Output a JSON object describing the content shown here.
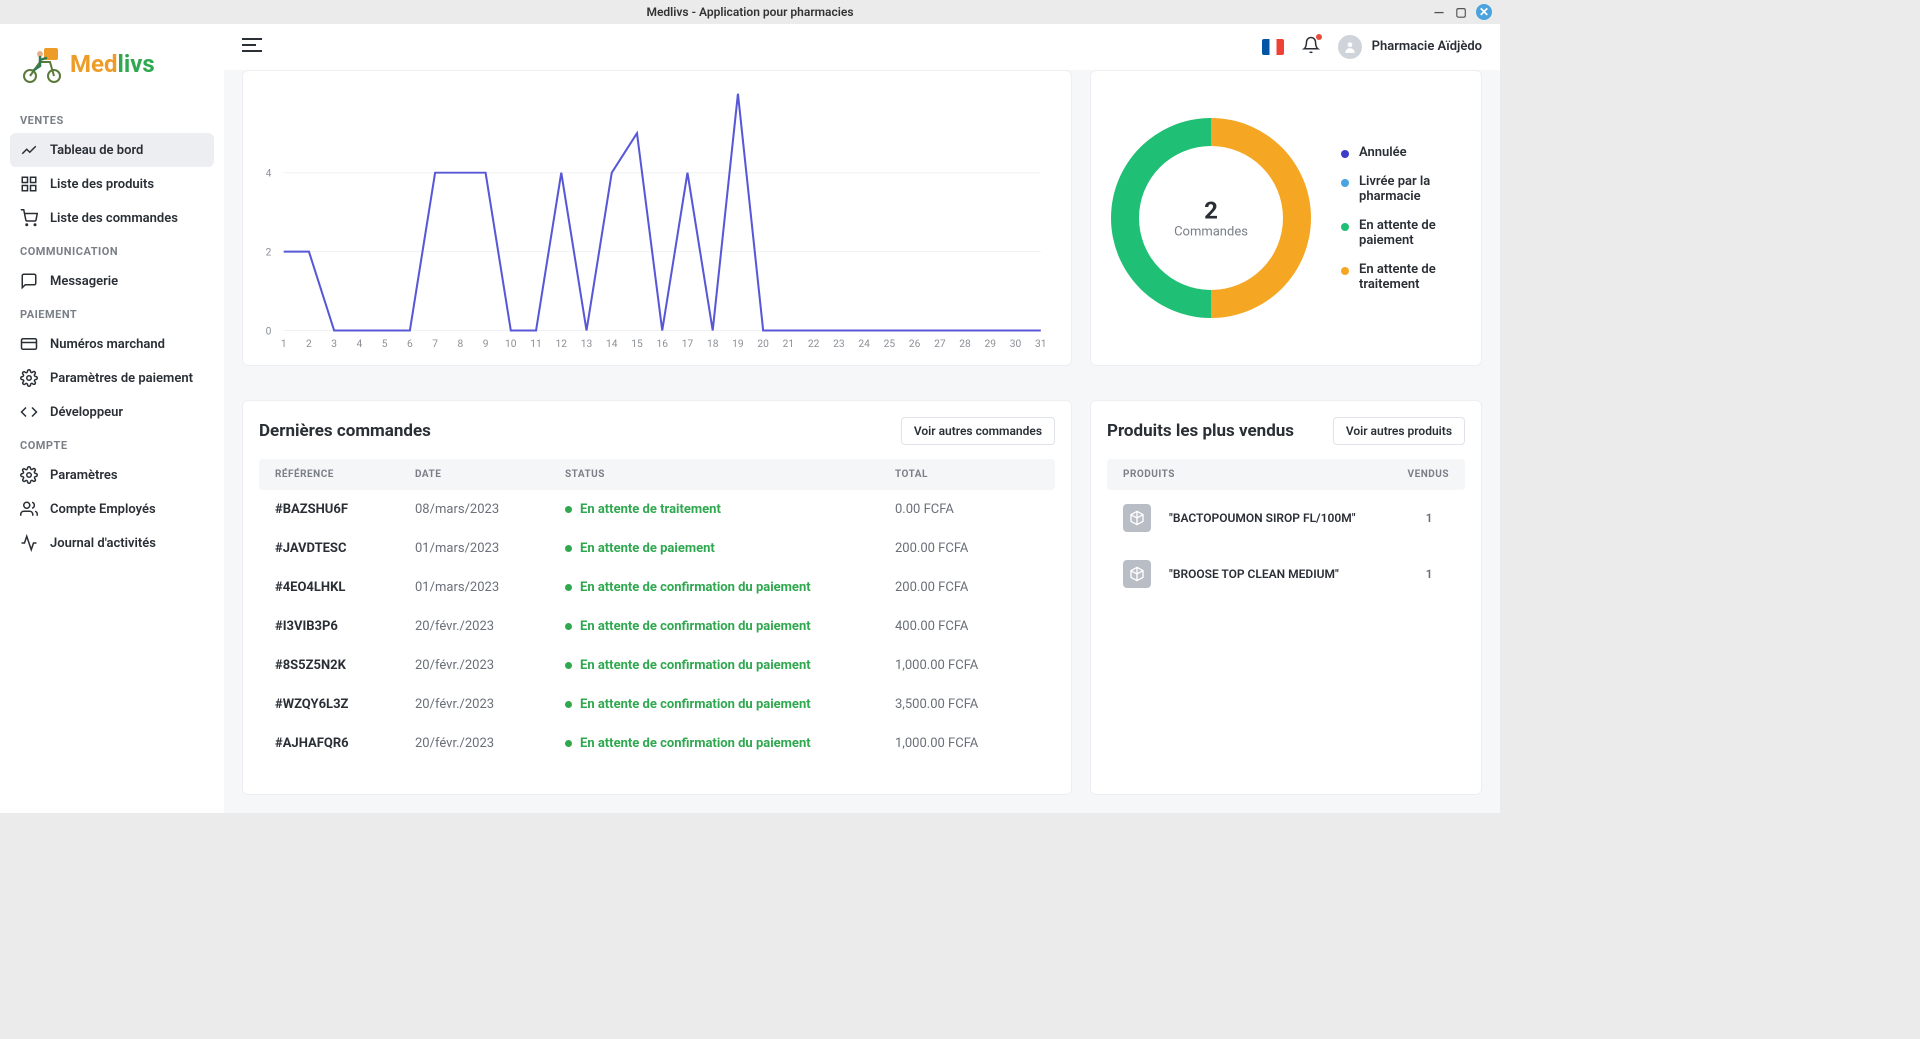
{
  "window": {
    "title": "Medlivs - Application pour pharmacies"
  },
  "logo": {
    "med": "Med",
    "livs": "livs"
  },
  "sidebar": {
    "sections": [
      {
        "label": "VENTES",
        "items": [
          {
            "icon": "trend",
            "label": "Tableau de bord",
            "active": true
          },
          {
            "icon": "grid",
            "label": "Liste des produits",
            "active": false
          },
          {
            "icon": "cart",
            "label": "Liste des commandes",
            "active": false
          }
        ]
      },
      {
        "label": "COMMUNICATION",
        "items": [
          {
            "icon": "chat",
            "label": "Messagerie",
            "active": false
          }
        ]
      },
      {
        "label": "PAIEMENT",
        "items": [
          {
            "icon": "card",
            "label": "Numéros marchand",
            "active": false
          },
          {
            "icon": "gear",
            "label": "Paramètres de paiement",
            "active": false
          },
          {
            "icon": "code",
            "label": "Développeur",
            "active": false
          }
        ]
      },
      {
        "label": "COMPTE",
        "items": [
          {
            "icon": "gear",
            "label": "Paramètres",
            "active": false
          },
          {
            "icon": "people",
            "label": "Compte Employés",
            "active": false
          },
          {
            "icon": "activity",
            "label": "Journal d'activités",
            "active": false
          }
        ]
      }
    ]
  },
  "topbar": {
    "user_name": "Pharmacie Aïdjèdo"
  },
  "chart": {
    "type": "line",
    "x_ticks": [
      1,
      2,
      3,
      4,
      5,
      6,
      7,
      8,
      9,
      10,
      11,
      12,
      13,
      14,
      15,
      16,
      17,
      18,
      19,
      20,
      21,
      22,
      23,
      24,
      25,
      26,
      27,
      28,
      29,
      30,
      31
    ],
    "y_ticks": [
      0,
      2,
      4
    ],
    "ylim": [
      0,
      6.2
    ],
    "line_color": "#5858d6",
    "grid_color": "#f0f1f4",
    "values": [
      2,
      2,
      0,
      0,
      0,
      0,
      4,
      4,
      4,
      0,
      0,
      4,
      0,
      4,
      5,
      0,
      4,
      0,
      6,
      0,
      0,
      0,
      0,
      0,
      0,
      0,
      0,
      0,
      0,
      0,
      0
    ]
  },
  "donut": {
    "center_value": "2",
    "center_label": "Commandes",
    "legend": [
      {
        "color": "#3c3cc8",
        "label": "Annulée"
      },
      {
        "color": "#4aa3df",
        "label": "Livrée par la pharmacie"
      },
      {
        "color": "#1fbf75",
        "label": "En attente de paiement"
      },
      {
        "color": "#f5a623",
        "label": "En attente de traitement"
      }
    ],
    "segments": [
      {
        "color": "#f5a623",
        "fraction": 0.5
      },
      {
        "color": "#1fbf75",
        "fraction": 0.5
      }
    ],
    "inner_radius": 72,
    "outer_radius": 100
  },
  "orders": {
    "title": "Dernières commandes",
    "button": "Voir autres commandes",
    "columns": {
      "ref": "RÉFÉRENCE",
      "date": "DATE",
      "status": "STATUS",
      "total": "TOTAL"
    },
    "rows": [
      {
        "ref": "#BAZSHU6F",
        "date": "08/mars/2023",
        "status": "En attente de traitement",
        "total": "0.00 FCFA"
      },
      {
        "ref": "#JAVDTESC",
        "date": "01/mars/2023",
        "status": "En attente de paiement",
        "total": "200.00 FCFA"
      },
      {
        "ref": "#4EO4LHKL",
        "date": "01/mars/2023",
        "status": "En attente de confirmation du paiement",
        "total": "200.00 FCFA"
      },
      {
        "ref": "#I3VIB3P6",
        "date": "20/févr./2023",
        "status": "En attente de confirmation du paiement",
        "total": "400.00 FCFA"
      },
      {
        "ref": "#8S5Z5N2K",
        "date": "20/févr./2023",
        "status": "En attente de confirmation du paiement",
        "total": "1,000.00 FCFA"
      },
      {
        "ref": "#WZQY6L3Z",
        "date": "20/févr./2023",
        "status": "En attente de confirmation du paiement",
        "total": "3,500.00 FCFA"
      },
      {
        "ref": "#AJHAFQR6",
        "date": "20/févr./2023",
        "status": "En attente de confirmation du paiement",
        "total": "1,000.00 FCFA"
      }
    ]
  },
  "products": {
    "title": "Produits les plus vendus",
    "button": "Voir autres produits",
    "columns": {
      "name": "PRODUITS",
      "sold": "VENDUS"
    },
    "rows": [
      {
        "name": "\"BACTOPOUMON SIROP FL/100M\"",
        "sold": "1"
      },
      {
        "name": "\"BROOSE TOP CLEAN MEDIUM\"",
        "sold": "1"
      }
    ]
  }
}
